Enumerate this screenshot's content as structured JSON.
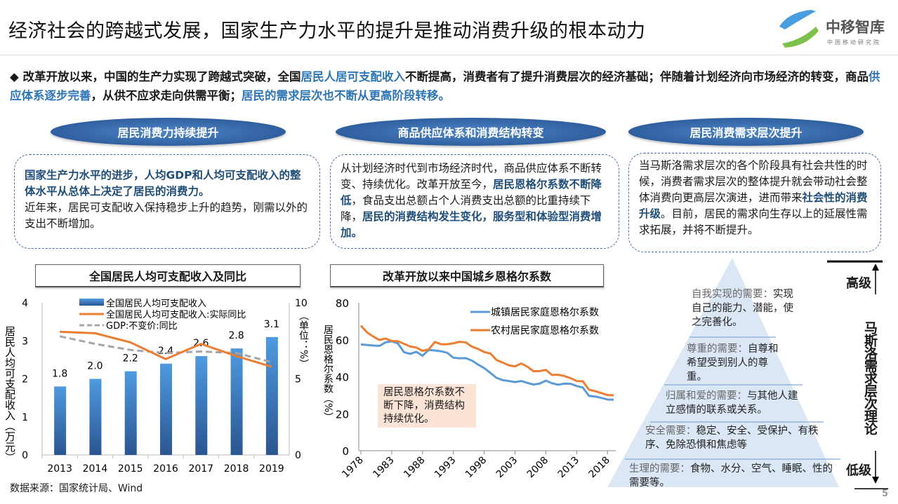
{
  "header": {
    "title": "经济社会的跨越式发展，国家生产力水平的提升是推动消费升级的根本动力",
    "logo_name": "中移智库",
    "logo_sub": "中国移动研究院"
  },
  "bullet": {
    "icon": "diamond-icon",
    "segments": [
      "改革开放以来，中国的生产力实现了跨越式突破，全国",
      "居民人居可支配收入",
      "不断提高，消费者有了提升消费层次的经济基础；伴随着计划经济向市场经济的转变，商品",
      "供应体系逐步完善",
      "，从供不应求走向供需平衡；",
      "居民的需求层次也不断从更高阶段转移。"
    ],
    "highlight_color": "#2e75b6"
  },
  "sections": [
    {
      "heading": "居民消费力持续提升",
      "segments": [
        "国家生产力水平的进步，人均GDP和人均可支配收入的整体水平从总体上决定了居民的消费力。",
        "近年来，居民可支配收入保持稳步上升的趋势，刚需以外的支出不断增加。"
      ]
    },
    {
      "heading": "商品供应体系和消费结构转变",
      "segments": [
        "从计划经济时代到市场经济时代，商品供应体系不断转变、持续优化。改革开放至今，",
        "居民恩格尔系数不断降低",
        "，食品支出总额占个人消费支出总额的比重持续下降，",
        "居民的消费结构发生变化，服务型和体验型消费增加。"
      ]
    },
    {
      "heading": "居民消费需求层次提升",
      "segments": [
        "当马斯洛需求层次的各个阶段具有社会共性的时候，消费者需求层次的整体提升就会带动社会整体消费向更高层次演进，进而带来",
        "社会性的消费升级",
        "。目前，居民的需求向生存以上的延展性需求拓展，并将不断提升。"
      ]
    }
  ],
  "chart_data": [
    {
      "type": "bar",
      "title": "全国居民人均可支配收入及同比",
      "categories": [
        "2013",
        "2014",
        "2015",
        "2016",
        "2017",
        "2018",
        "2019"
      ],
      "ylabel": "居民人均可支配收入（万元）",
      "ylim": [
        0,
        4
      ],
      "yticks": [
        "0",
        "1",
        "2",
        "3",
        "4"
      ],
      "y2label": "（单位：%）",
      "y2lim": [
        0,
        10
      ],
      "y2ticks": [
        "0",
        "5",
        "10"
      ],
      "series": [
        {
          "name": "全国居民人均可支配收入",
          "type": "bar",
          "axis": "left",
          "values": [
            1.8,
            2.0,
            2.2,
            2.4,
            2.6,
            2.8,
            3.1
          ],
          "labels": [
            "1.8",
            "2.0",
            "2.2",
            "2.4",
            "2.6",
            "2.8",
            "3.1"
          ],
          "color": "#3d7fc4"
        },
        {
          "name": "全国居民人均可支配收入:实际同比",
          "type": "line",
          "axis": "right",
          "values": [
            8.1,
            8.0,
            7.4,
            6.3,
            7.3,
            6.5,
            5.8
          ],
          "color": "#ed7d31"
        },
        {
          "name": "GDP:不变价:同比",
          "type": "line",
          "dashed": true,
          "axis": "right",
          "values": [
            7.8,
            7.3,
            6.9,
            6.7,
            6.8,
            6.7,
            6.1
          ],
          "color": "#a6a6a6"
        }
      ],
      "legend": "top",
      "source": "数据来源：国家统计局、Wind"
    },
    {
      "type": "line",
      "title": "改革开放以来中国城乡恩格尔系数",
      "x": [
        1978,
        1979,
        1980,
        1981,
        1982,
        1983,
        1984,
        1985,
        1986,
        1987,
        1988,
        1989,
        1990,
        1991,
        1992,
        1993,
        1994,
        1995,
        1996,
        1997,
        1998,
        1999,
        2000,
        2001,
        2002,
        2003,
        2004,
        2005,
        2006,
        2007,
        2008,
        2009,
        2010,
        2011,
        2012,
        2013,
        2014,
        2015,
        2016,
        2017,
        2018,
        2019
      ],
      "xticks": [
        "1978",
        "1983",
        "1988",
        "1993",
        "1998",
        "2003",
        "2008",
        "2013",
        "2018"
      ],
      "ylabel": "居民恩格尔系数（%）",
      "ylim": [
        0,
        80
      ],
      "yticks": [
        "0",
        "20",
        "40",
        "60",
        "80"
      ],
      "series": [
        {
          "name": "城镇居民家庭恩格尔系数",
          "color": "#5b9bd5",
          "values": [
            57.5,
            57.2,
            56.9,
            56.7,
            58.6,
            59.2,
            58.0,
            53.3,
            52.4,
            53.5,
            51.4,
            54.5,
            54.2,
            53.8,
            53.0,
            50.3,
            50.0,
            50.1,
            48.8,
            46.6,
            44.7,
            42.1,
            39.4,
            38.2,
            37.7,
            37.1,
            37.7,
            36.7,
            35.8,
            36.3,
            37.9,
            36.5,
            35.7,
            36.3,
            36.2,
            35.0,
            34.2,
            29.7,
            29.3,
            28.6,
            27.7,
            27.6
          ]
        },
        {
          "name": "农村居民家庭恩格尔系数",
          "color": "#ed7d31",
          "values": [
            67.7,
            64.0,
            61.8,
            59.9,
            60.7,
            59.4,
            59.2,
            57.8,
            56.4,
            55.8,
            54.0,
            54.8,
            58.8,
            57.6,
            57.6,
            58.1,
            58.9,
            58.6,
            56.3,
            55.1,
            53.4,
            52.6,
            49.1,
            47.7,
            46.2,
            45.6,
            47.2,
            45.5,
            43.0,
            43.1,
            43.7,
            41.0,
            41.1,
            40.4,
            39.3,
            37.7,
            37.6,
            33.0,
            32.2,
            31.2,
            30.1,
            30.0
          ]
        }
      ],
      "legend": "top-right",
      "annotation": "居民恩格尔系数不断下降，消费结构持续优化。"
    }
  ],
  "pyramid": {
    "title": "马斯洛需求层次理论",
    "high": "高级",
    "low": "低级",
    "levels": [
      {
        "name": "自我实现的需要：",
        "desc": "实现自己的能力、潜能，使之完善化。"
      },
      {
        "name": "尊重的需要：",
        "desc": "自尊和希望受到别人的尊重。"
      },
      {
        "name": "归属和爱的需要：",
        "desc": "与其他人建立感情的联系或关系。"
      },
      {
        "name": "安全需要：",
        "desc": "稳定、安全、受保护、有秩序、免除恐惧和焦虑等"
      },
      {
        "name": "生理的需要：",
        "desc": "食物、水分、空气、睡眠、性的需要等。"
      }
    ]
  },
  "footer": {
    "page": "5"
  }
}
